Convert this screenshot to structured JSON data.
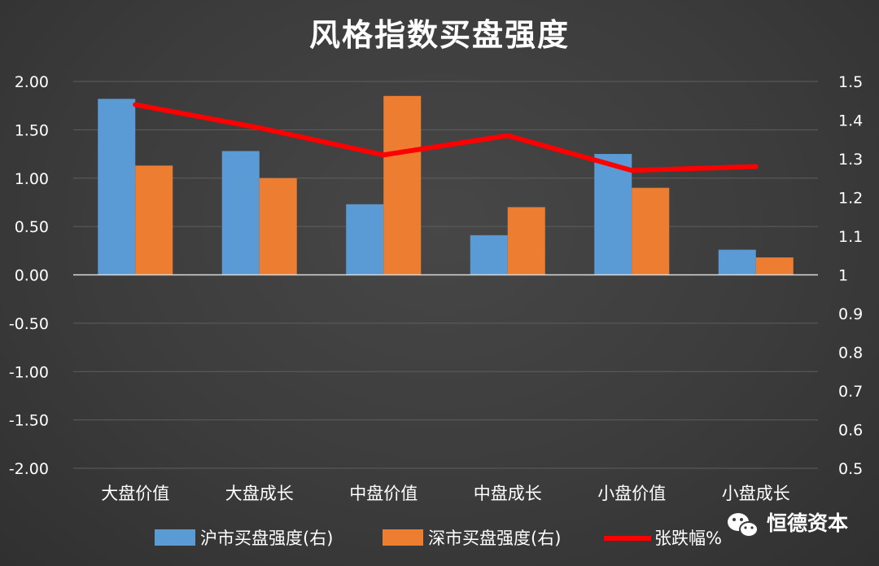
{
  "chart_data": {
    "type": "bar",
    "title": "风格指数买盘强度",
    "categories": [
      "大盘价值",
      "大盘成长",
      "中盘价值",
      "中盘成长",
      "小盘价值",
      "小盘成长"
    ],
    "ylim_left": [
      -2.0,
      2.0
    ],
    "ylim_right": [
      0.5,
      1.5
    ],
    "yticks_left": [
      "2.00",
      "1.50",
      "1.00",
      "0.50",
      "0.00",
      "-0.50",
      "-1.00",
      "-1.50",
      "-2.00"
    ],
    "yticks_right": [
      "1.5",
      "1.4",
      "1.3",
      "1.2",
      "1.1",
      "1",
      "0.9",
      "0.8",
      "0.7",
      "0.6",
      "0.5"
    ],
    "grid": true,
    "legend_position": "bottom",
    "series": [
      {
        "name": "沪市买盘强度(右)",
        "type": "bar",
        "axis": "left",
        "color": "#5b9bd5",
        "values": [
          1.82,
          1.28,
          0.73,
          0.41,
          1.25,
          0.26
        ]
      },
      {
        "name": "深市买盘强度(右)",
        "type": "bar",
        "axis": "left",
        "color": "#ed7d31",
        "values": [
          1.13,
          1.0,
          1.85,
          0.7,
          0.9,
          0.18
        ]
      },
      {
        "name": "张跌幅%",
        "type": "line",
        "axis": "right",
        "color": "#ff0000",
        "values": [
          1.44,
          1.38,
          1.31,
          1.36,
          1.27,
          1.28
        ]
      }
    ]
  },
  "brand": {
    "name": "恒德资本",
    "icon": "wechat-icon"
  }
}
